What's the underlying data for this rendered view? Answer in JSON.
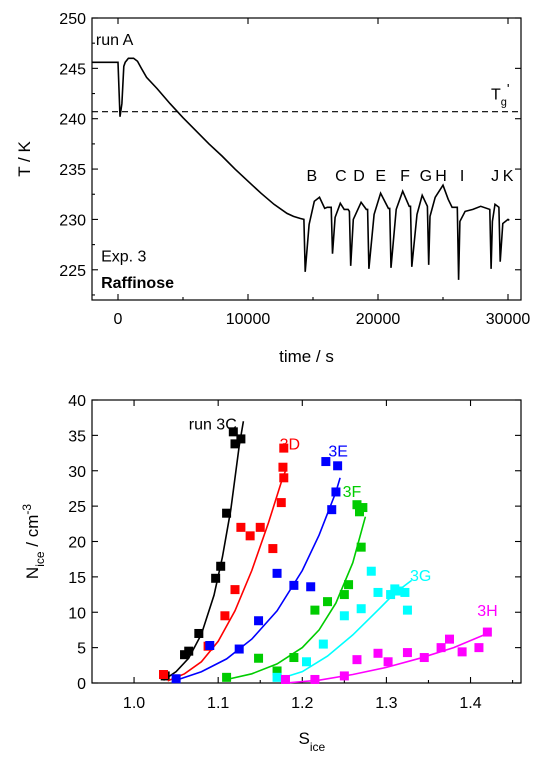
{
  "chart_data": [
    {
      "type": "line",
      "xlabel": "time / s",
      "ylabel": "T / K",
      "xlim": [
        -2000,
        31000
      ],
      "ylim": [
        222,
        250
      ],
      "xticks": [
        0,
        10000,
        20000,
        30000
      ],
      "xtick_labels": [
        "0",
        "10000",
        "20000",
        "30000"
      ],
      "yticks": [
        225,
        230,
        235,
        240,
        245,
        250
      ],
      "ytick_labels": [
        "225",
        "230",
        "235",
        "240",
        "245",
        "250"
      ],
      "reference_line": {
        "y": 240.7,
        "style": "dashed",
        "label": "T",
        "label_sub": "g",
        "label_suffix": "'"
      },
      "annotations": [
        {
          "text": "run A",
          "x": -1700,
          "y": 247.3
        },
        {
          "text": "Exp. 3",
          "x": -1300,
          "y": 225.8
        },
        {
          "text": "Raffinose",
          "x": -1300,
          "y": 223.2,
          "bold": true
        }
      ],
      "run_labels": [
        {
          "text": "B",
          "x": 14500,
          "y": 233.8
        },
        {
          "text": "C",
          "x": 16700,
          "y": 233.8
        },
        {
          "text": "D",
          "x": 18100,
          "y": 233.8
        },
        {
          "text": "E",
          "x": 19800,
          "y": 233.8
        },
        {
          "text": "F",
          "x": 21700,
          "y": 233.8
        },
        {
          "text": "G",
          "x": 23200,
          "y": 233.8
        },
        {
          "text": "H",
          "x": 24400,
          "y": 233.8
        },
        {
          "text": "I",
          "x": 26300,
          "y": 233.8
        },
        {
          "text": "J",
          "x": 28700,
          "y": 233.8
        },
        {
          "text": "K",
          "x": 29600,
          "y": 233.8
        }
      ],
      "series": [
        {
          "x": [
            -2000,
            0,
            150,
            300,
            450,
            550,
            800,
            1200,
            1500,
            1800,
            2200,
            3000,
            4000,
            5000,
            6000,
            7000,
            8000,
            9000,
            10000,
            11000,
            12000,
            13000,
            13500,
            14000,
            14300,
            14400,
            14700,
            15100,
            15500,
            15900,
            16100,
            16400,
            16500,
            16700,
            17100,
            17400,
            17700,
            17800,
            17900,
            18100,
            18700,
            19100,
            19200,
            19300,
            19700,
            20200,
            20800,
            20900,
            21000,
            21400,
            21900,
            22400,
            22500,
            22600,
            23000,
            23400,
            23800,
            23900,
            24000,
            24400,
            25000,
            25400,
            25700,
            26100,
            26200,
            26300,
            26700,
            27300,
            27900,
            28600,
            28700,
            28800,
            29000,
            29300,
            29400,
            29600,
            30000,
            30100
          ],
          "y": [
            245.6,
            245.6,
            240.2,
            241.5,
            245.2,
            245.6,
            246.0,
            246.0,
            245.7,
            245.0,
            244.1,
            243.0,
            241.5,
            240.1,
            238.8,
            237.5,
            236.3,
            235.0,
            233.8,
            232.6,
            231.5,
            230.6,
            230.3,
            230.1,
            230.0,
            224.8,
            229.5,
            231.8,
            232.2,
            231.1,
            231.2,
            231.2,
            226.6,
            230.2,
            231.6,
            231.0,
            231.0,
            230.8,
            225.4,
            230.0,
            231.7,
            231.0,
            231.0,
            225.1,
            230.5,
            232.6,
            231.1,
            231.1,
            225.2,
            231.0,
            232.8,
            231.3,
            231.3,
            225.3,
            230.5,
            232.4,
            231.3,
            225.5,
            230.3,
            232.2,
            233.4,
            232.0,
            231.2,
            231.2,
            224.0,
            229.8,
            230.8,
            231.0,
            231.3,
            231.0,
            225.1,
            229.8,
            231.5,
            231.2,
            225.8,
            229.6,
            230.0,
            229.9
          ]
        }
      ]
    },
    {
      "type": "scatter",
      "xlabel": "S",
      "xlabel_sub": "ice",
      "ylabel": "N",
      "ylabel_sub": "ice",
      "ylabel_suffix": " / cm",
      "ylabel_sup": "-3",
      "xlim": [
        0.95,
        1.46
      ],
      "ylim": [
        0,
        40
      ],
      "xticks": [
        1.0,
        1.1,
        1.2,
        1.3,
        1.4
      ],
      "xtick_labels": [
        "1.0",
        "1.1",
        "1.2",
        "1.3",
        "1.4"
      ],
      "yticks": [
        0,
        5,
        10,
        15,
        20,
        25,
        30,
        35,
        40
      ],
      "ytick_labels": [
        "0",
        "5",
        "10",
        "15",
        "20",
        "25",
        "30",
        "35",
        "40"
      ],
      "series": [
        {
          "name": "run 3C",
          "color": "#000000",
          "label_x": 1.065,
          "label_y": 35.8,
          "points": [
            [
              1.037,
              1.0
            ],
            [
              1.06,
              4.0
            ],
            [
              1.065,
              4.5
            ],
            [
              1.077,
              7.0
            ],
            [
              1.097,
              14.8
            ],
            [
              1.103,
              16.5
            ],
            [
              1.11,
              24.0
            ],
            [
              1.118,
              35.5
            ],
            [
              1.127,
              34.5
            ],
            [
              1.12,
              33.8
            ]
          ],
          "fit": [
            [
              1.035,
              0.4
            ],
            [
              1.05,
              1.6
            ],
            [
              1.065,
              3.5
            ],
            [
              1.08,
              6.9
            ],
            [
              1.095,
              12.4
            ],
            [
              1.105,
              17.8
            ],
            [
              1.115,
              24.5
            ],
            [
              1.125,
              33.5
            ],
            [
              1.13,
              37.0
            ]
          ]
        },
        {
          "name": "3D",
          "color": "#ff0000",
          "label_x": 1.173,
          "label_y": 33.0,
          "points": [
            [
              1.035,
              1.2
            ],
            [
              1.088,
              5.2
            ],
            [
              1.108,
              9.5
            ],
            [
              1.12,
              13.2
            ],
            [
              1.127,
              22.0
            ],
            [
              1.138,
              20.8
            ],
            [
              1.15,
              22.0
            ],
            [
              1.165,
              19.0
            ],
            [
              1.175,
              25.5
            ],
            [
              1.177,
              30.5
            ],
            [
              1.178,
              29.0
            ],
            [
              1.178,
              33.2
            ]
          ],
          "fit": [
            [
              1.04,
              0.3
            ],
            [
              1.06,
              1.3
            ],
            [
              1.08,
              3.0
            ],
            [
              1.1,
              5.9
            ],
            [
              1.12,
              10.2
            ],
            [
              1.14,
              15.9
            ],
            [
              1.16,
              22.7
            ],
            [
              1.175,
              28.4
            ],
            [
              1.18,
              30.0
            ]
          ]
        },
        {
          "name": "3E",
          "color": "#0000ff",
          "label_x": 1.231,
          "label_y": 32.0,
          "points": [
            [
              1.05,
              0.6
            ],
            [
              1.09,
              5.3
            ],
            [
              1.125,
              4.8
            ],
            [
              1.148,
              8.8
            ],
            [
              1.17,
              15.5
            ],
            [
              1.19,
              13.8
            ],
            [
              1.21,
              13.6
            ],
            [
              1.228,
              31.3
            ],
            [
              1.235,
              24.5
            ],
            [
              1.24,
              27.0
            ],
            [
              1.242,
              30.7
            ]
          ],
          "fit": [
            [
              1.05,
              0.4
            ],
            [
              1.08,
              1.6
            ],
            [
              1.11,
              3.4
            ],
            [
              1.14,
              6.2
            ],
            [
              1.17,
              10.2
            ],
            [
              1.2,
              15.9
            ],
            [
              1.22,
              20.9
            ],
            [
              1.24,
              27.0
            ],
            [
              1.245,
              29.0
            ]
          ]
        },
        {
          "name": "3F",
          "color": "#00cc00",
          "label_x": 1.248,
          "label_y": 26.3,
          "points": [
            [
              1.11,
              0.8
            ],
            [
              1.148,
              3.5
            ],
            [
              1.17,
              1.7
            ],
            [
              1.19,
              3.6
            ],
            [
              1.215,
              10.3
            ],
            [
              1.23,
              11.5
            ],
            [
              1.25,
              12.5
            ],
            [
              1.255,
              13.9
            ],
            [
              1.265,
              25.2
            ],
            [
              1.268,
              24.2
            ],
            [
              1.27,
              19.2
            ],
            [
              1.272,
              24.8
            ]
          ],
          "fit": [
            [
              1.11,
              0.5
            ],
            [
              1.14,
              1.3
            ],
            [
              1.17,
              2.7
            ],
            [
              1.2,
              5.0
            ],
            [
              1.22,
              7.5
            ],
            [
              1.24,
              11.3
            ],
            [
              1.26,
              17.0
            ],
            [
              1.275,
              23.5
            ]
          ]
        },
        {
          "name": "3G",
          "color": "#00ffff",
          "label_x": 1.328,
          "label_y": 14.4,
          "points": [
            [
              1.17,
              0.8
            ],
            [
              1.205,
              3.0
            ],
            [
              1.225,
              5.5
            ],
            [
              1.25,
              9.5
            ],
            [
              1.27,
              10.5
            ],
            [
              1.282,
              15.8
            ],
            [
              1.29,
              12.8
            ],
            [
              1.305,
              12.5
            ],
            [
              1.31,
              13.3
            ],
            [
              1.315,
              13.0
            ],
            [
              1.322,
              12.8
            ],
            [
              1.325,
              10.3
            ]
          ],
          "fit": [
            [
              1.165,
              0.3
            ],
            [
              1.2,
              1.6
            ],
            [
              1.23,
              3.8
            ],
            [
              1.26,
              6.8
            ],
            [
              1.29,
              10.3
            ],
            [
              1.31,
              12.7
            ],
            [
              1.33,
              14.5
            ]
          ]
        },
        {
          "name": "3H",
          "color": "#ff00ff",
          "label_x": 1.408,
          "label_y": 9.5,
          "points": [
            [
              1.18,
              0.5
            ],
            [
              1.215,
              0.5
            ],
            [
              1.25,
              1.0
            ],
            [
              1.265,
              3.3
            ],
            [
              1.29,
              4.2
            ],
            [
              1.302,
              3.0
            ],
            [
              1.325,
              4.3
            ],
            [
              1.345,
              3.6
            ],
            [
              1.365,
              5.0
            ],
            [
              1.375,
              6.2
            ],
            [
              1.39,
              4.4
            ],
            [
              1.41,
              5.0
            ],
            [
              1.42,
              7.2
            ]
          ],
          "fit": [
            [
              1.18,
              0.0
            ],
            [
              1.22,
              0.4
            ],
            [
              1.26,
              1.2
            ],
            [
              1.3,
              2.2
            ],
            [
              1.34,
              3.5
            ],
            [
              1.38,
              5.0
            ],
            [
              1.42,
              7.0
            ]
          ]
        }
      ]
    }
  ]
}
